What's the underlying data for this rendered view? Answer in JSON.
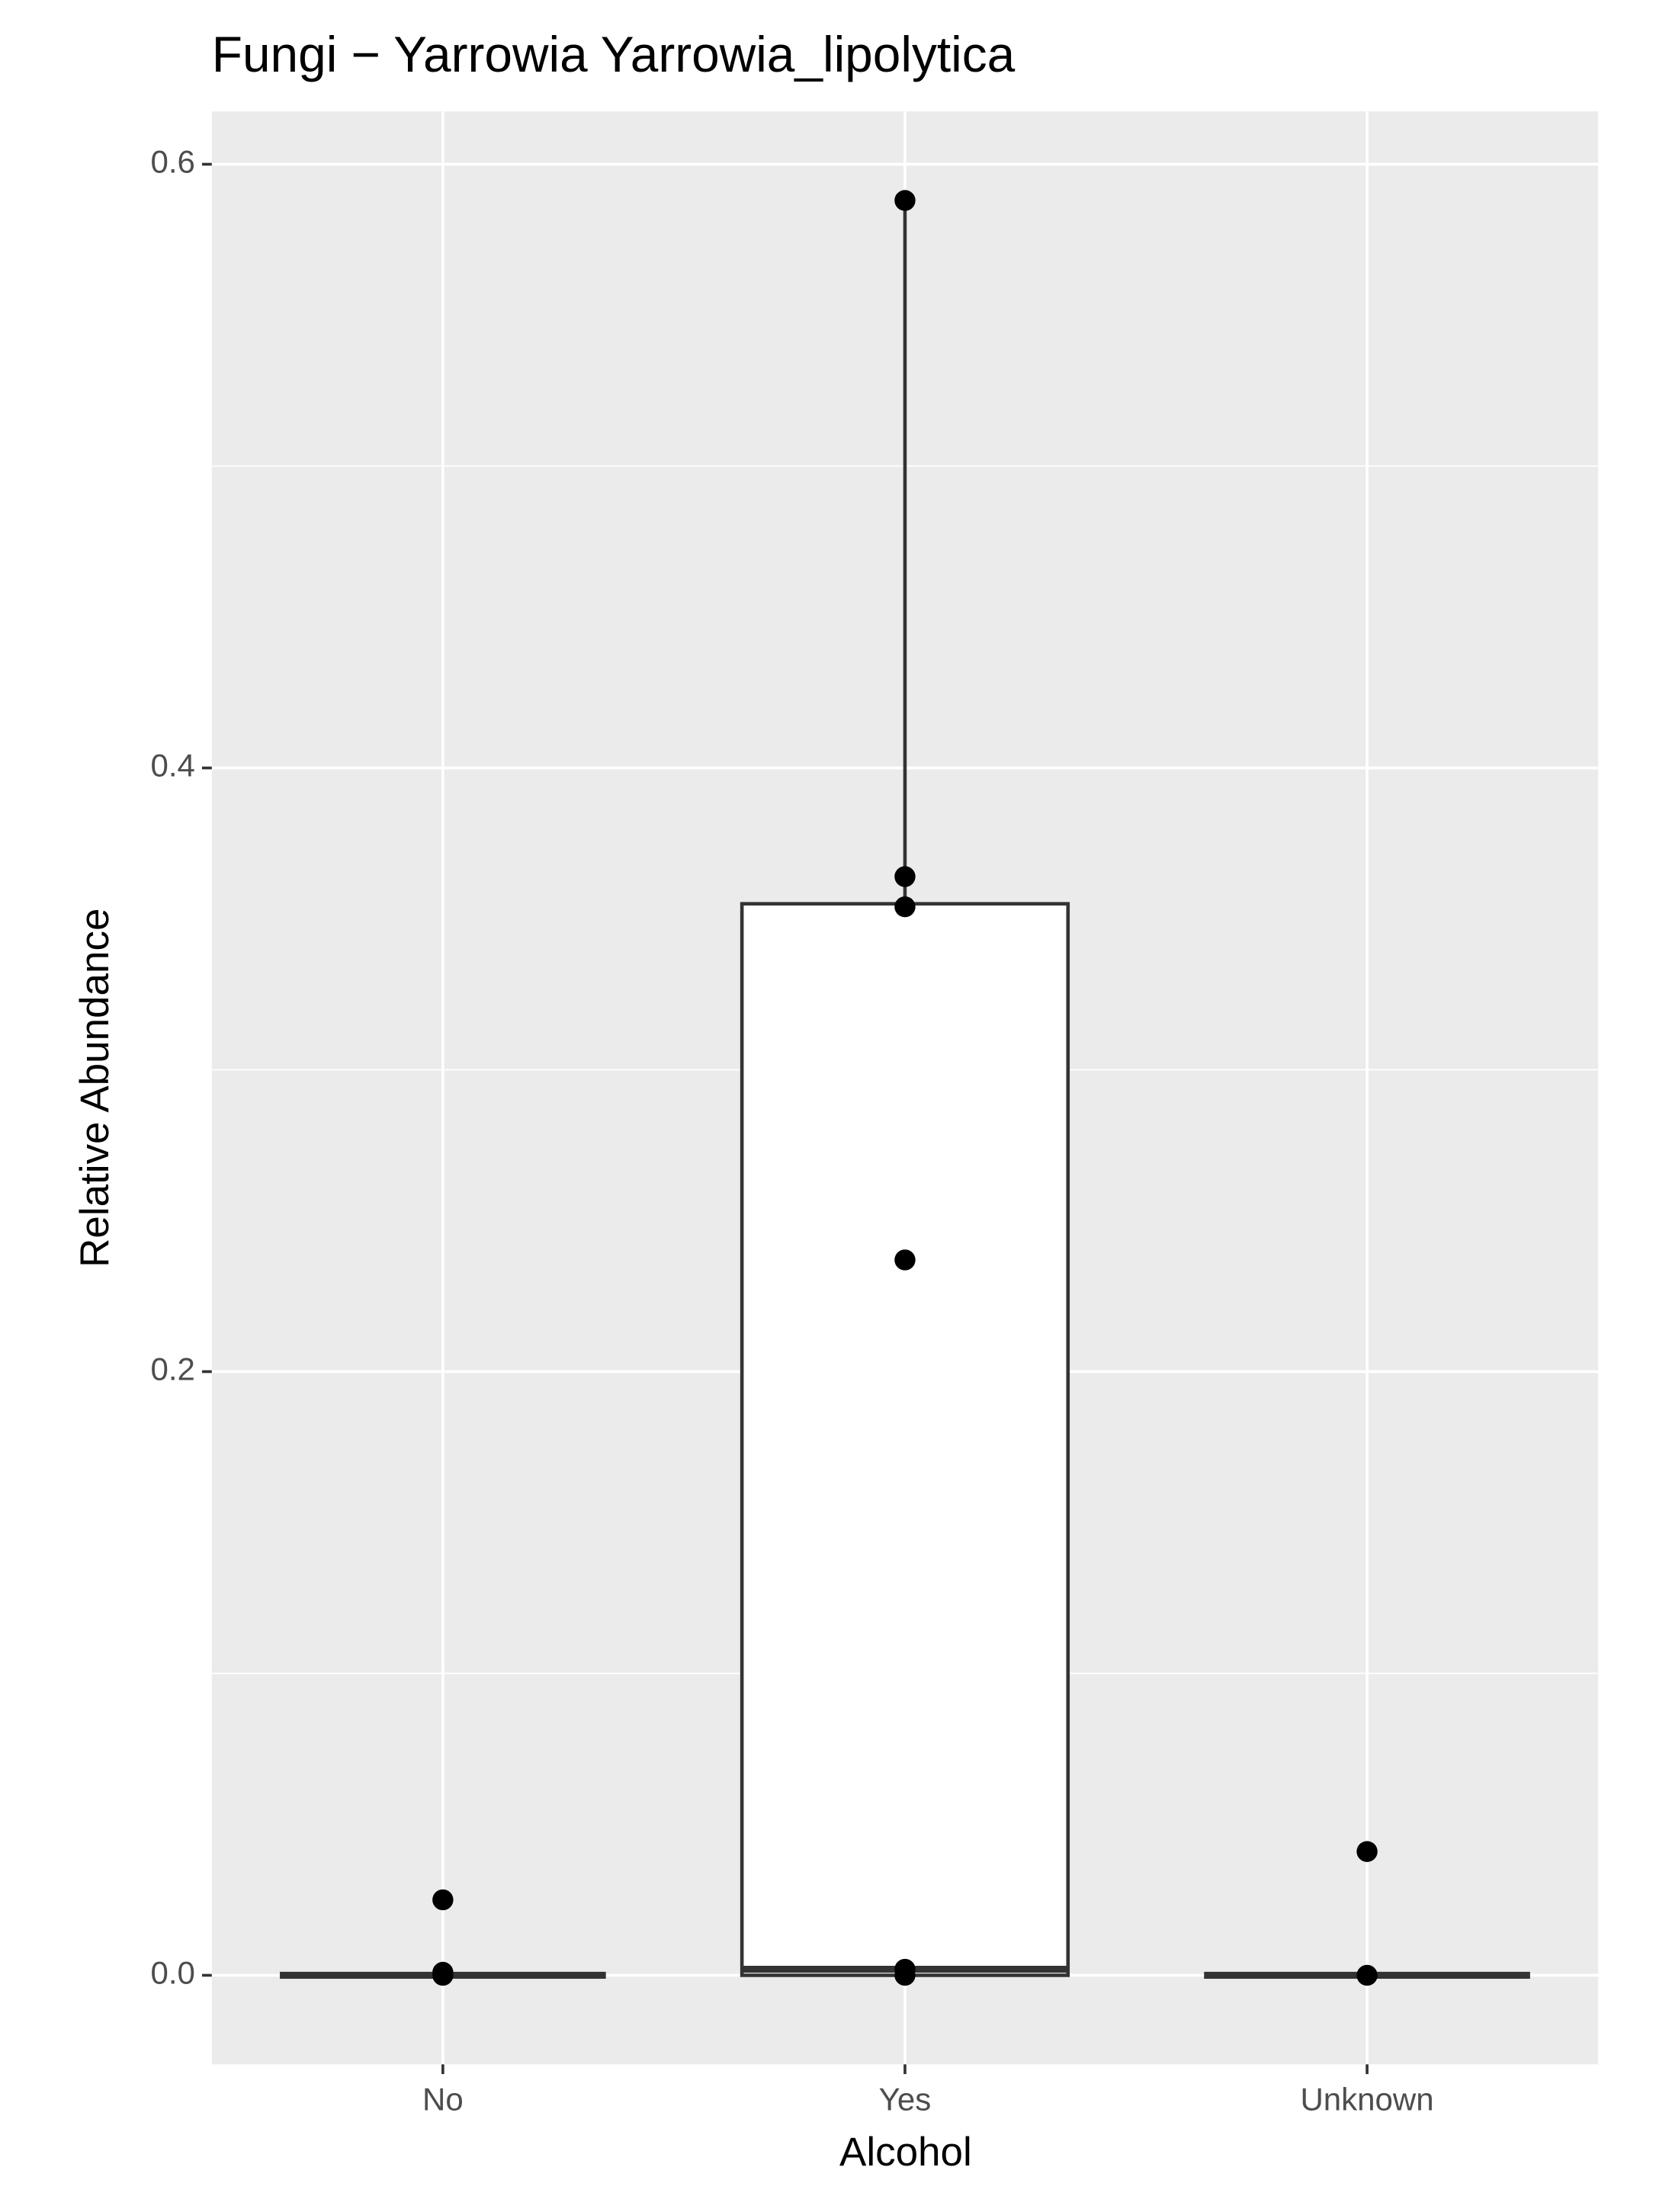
{
  "chart_data": {
    "type": "box",
    "title": "Fungi − Yarrowia Yarrowia_lipolytica",
    "x_label": "Alcohol",
    "y_label": "Relative Abundance",
    "categories": [
      "No",
      "Yes",
      "Unknown"
    ],
    "boxes": {
      "min": [
        0,
        0,
        0
      ],
      "q1": [
        0,
        0,
        0
      ],
      "median": [
        0,
        0.002,
        0
      ],
      "q3": [
        0,
        0.355,
        0
      ],
      "max": [
        0,
        0.588,
        0
      ]
    },
    "points": [
      [
        0.025,
        0.001,
        0
      ],
      [
        0.588,
        0.364,
        0.354,
        0.237,
        0.002,
        0
      ],
      [
        0.041,
        0
      ]
    ],
    "point_color": "#000000",
    "box_fill": "#ffffff",
    "box_stroke": "#333333",
    "ylim": [
      -0.0295,
      0.6175
    ],
    "yticks": [
      {
        "value": 0,
        "label": "0.0"
      },
      0.2,
      0.4,
      0.6
    ],
    "minor_yticks": [
      0.1,
      0.3,
      0.5
    ],
    "grid": true
  }
}
